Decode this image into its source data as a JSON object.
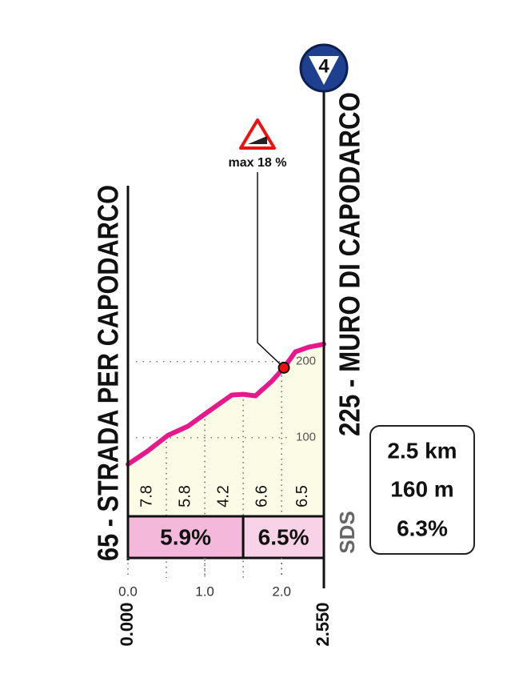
{
  "chart_data": {
    "type": "line",
    "start_label": "65 - STRADA PER CAPODARCO",
    "end_label": "225 - MURO DI CAPODARCO",
    "badge": "4",
    "logo": "SDS",
    "x": [
      0,
      0.25,
      0.52,
      0.78,
      1.0,
      1.35,
      1.5,
      1.66,
      1.87,
      2.03,
      2.18,
      2.35,
      2.55
    ],
    "values": [
      65,
      82,
      103,
      115,
      131,
      156,
      157,
      155,
      174,
      192,
      213,
      219,
      223
    ],
    "color": "#e6188c",
    "fill": "#fbfbe6",
    "xlim": [
      0,
      2.55
    ],
    "xticks": [
      {
        "value": 0,
        "label": "0.0"
      },
      {
        "value": 1,
        "label": "1.0"
      },
      {
        "value": 2,
        "label": "2.0"
      }
    ],
    "km_labels": [
      "0.000",
      "2.550"
    ],
    "ylim": [
      65,
      225
    ],
    "yticks": [
      100,
      200
    ],
    "segments": {
      "edges": [
        0,
        0.5,
        1,
        1.5,
        2,
        2.55
      ],
      "values": [
        7.8,
        5.8,
        4.2,
        6.6,
        6.5
      ]
    },
    "sectors": {
      "edges": [
        0,
        1.5,
        2.55
      ],
      "values": [
        5.9,
        6.5
      ],
      "value_labels": [
        "5.9%",
        "6.5%"
      ],
      "colors": [
        "#f4b9da",
        "#f8d3e7"
      ]
    },
    "max": {
      "label": "max 18 %",
      "x": 2.03,
      "value": 192
    },
    "stats": [
      "2.5 km",
      "160 m",
      "6.3%"
    ]
  }
}
